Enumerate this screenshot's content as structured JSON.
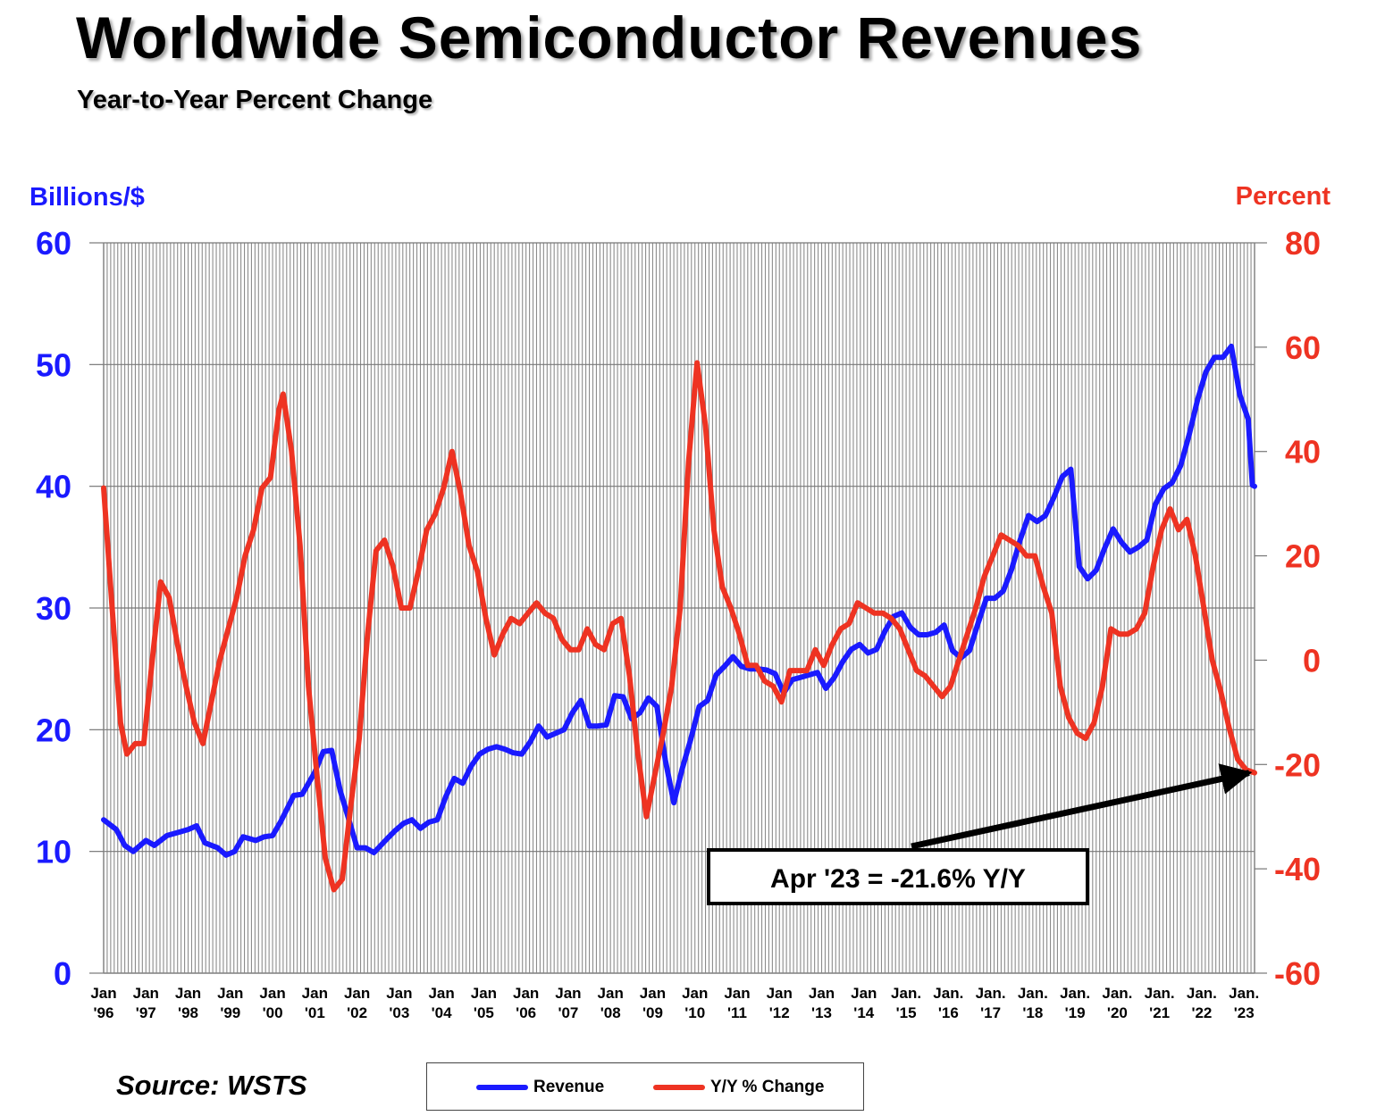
{
  "title": "Worldwide Semiconductor Revenues",
  "subtitle": "Year-to-Year Percent Change",
  "source": "Source: WSTS",
  "colors": {
    "revenue": "#1a1aff",
    "yoy": "#ee3322",
    "grid": "#8c8c8c",
    "left_axis": "#1a1aff",
    "right_axis": "#ee3322"
  },
  "chart_data": {
    "type": "line",
    "left_axis": {
      "label": "Billions/$",
      "range": [
        0,
        60
      ],
      "ticks": [
        "0",
        "10",
        "20",
        "30",
        "40",
        "50",
        "60"
      ]
    },
    "right_axis": {
      "label": "Percent",
      "range": [
        -60,
        80
      ],
      "ticks": [
        "-60",
        "-40",
        "-20",
        "0",
        "20",
        "40",
        "60",
        "80"
      ]
    },
    "x_range": [
      1996.0,
      2023.25
    ],
    "x_ticks": [
      [
        "Jan",
        "'96"
      ],
      [
        "Jan",
        "'97"
      ],
      [
        "Jan",
        "'98"
      ],
      [
        "Jan",
        "'99"
      ],
      [
        "Jan",
        "'00"
      ],
      [
        "Jan",
        "'01"
      ],
      [
        "Jan",
        "'02"
      ],
      [
        "Jan",
        "'03"
      ],
      [
        "Jan",
        "'04"
      ],
      [
        "Jan",
        "'05"
      ],
      [
        "Jan",
        "'06"
      ],
      [
        "Jan",
        "'07"
      ],
      [
        "Jan",
        "'08"
      ],
      [
        "Jan",
        "'09"
      ],
      [
        "Jan",
        "'10"
      ],
      [
        "Jan",
        "'11"
      ],
      [
        "Jan",
        "'12"
      ],
      [
        "Jan",
        "'13"
      ],
      [
        "Jan",
        "'14"
      ],
      [
        "Jan.",
        "'15"
      ],
      [
        "Jan.",
        "'16"
      ],
      [
        "Jan.",
        "'17"
      ],
      [
        "Jan.",
        "'18"
      ],
      [
        "Jan.",
        "'19"
      ],
      [
        "Jan.",
        "'20"
      ],
      [
        "Jan.",
        "'21"
      ],
      [
        "Jan.",
        "'22"
      ],
      [
        "Jan.",
        "'23"
      ]
    ],
    "grid": "vertical monthly lines, horizontal at each left-axis tick",
    "series": [
      {
        "name": "Revenue",
        "axis": "left",
        "points": [
          [
            1996.0,
            12.6
          ],
          [
            1996.3,
            11.8
          ],
          [
            1996.5,
            10.5
          ],
          [
            1996.7,
            10.0
          ],
          [
            1997.0,
            10.9
          ],
          [
            1997.2,
            10.5
          ],
          [
            1997.5,
            11.3
          ],
          [
            1997.8,
            11.6
          ],
          [
            1998.0,
            11.8
          ],
          [
            1998.2,
            12.1
          ],
          [
            1998.4,
            10.7
          ],
          [
            1998.7,
            10.3
          ],
          [
            1998.9,
            9.7
          ],
          [
            1999.1,
            10.0
          ],
          [
            1999.3,
            11.2
          ],
          [
            1999.6,
            10.9
          ],
          [
            1999.8,
            11.2
          ],
          [
            2000.0,
            11.3
          ],
          [
            2000.2,
            12.5
          ],
          [
            2000.5,
            14.6
          ],
          [
            2000.7,
            14.7
          ],
          [
            2001.0,
            16.5
          ],
          [
            2001.2,
            18.2
          ],
          [
            2001.4,
            18.3
          ],
          [
            2001.6,
            15.0
          ],
          [
            2001.8,
            12.7
          ],
          [
            2002.0,
            10.3
          ],
          [
            2002.2,
            10.3
          ],
          [
            2002.4,
            9.9
          ],
          [
            2002.7,
            11.0
          ],
          [
            2002.9,
            11.7
          ],
          [
            2003.1,
            12.3
          ],
          [
            2003.3,
            12.6
          ],
          [
            2003.5,
            11.9
          ],
          [
            2003.7,
            12.4
          ],
          [
            2003.9,
            12.6
          ],
          [
            2004.1,
            14.5
          ],
          [
            2004.3,
            16.0
          ],
          [
            2004.5,
            15.6
          ],
          [
            2004.7,
            17.0
          ],
          [
            2004.9,
            18.0
          ],
          [
            2005.1,
            18.4
          ],
          [
            2005.3,
            18.6
          ],
          [
            2005.5,
            18.4
          ],
          [
            2005.7,
            18.1
          ],
          [
            2005.9,
            18.0
          ],
          [
            2006.1,
            19.0
          ],
          [
            2006.3,
            20.3
          ],
          [
            2006.5,
            19.4
          ],
          [
            2006.7,
            19.7
          ],
          [
            2006.9,
            20.0
          ],
          [
            2007.1,
            21.4
          ],
          [
            2007.3,
            22.4
          ],
          [
            2007.5,
            20.3
          ],
          [
            2007.7,
            20.3
          ],
          [
            2007.9,
            20.4
          ],
          [
            2008.1,
            22.8
          ],
          [
            2008.3,
            22.7
          ],
          [
            2008.5,
            20.9
          ],
          [
            2008.7,
            21.4
          ],
          [
            2008.9,
            22.6
          ],
          [
            2009.1,
            21.9
          ],
          [
            2009.3,
            17.5
          ],
          [
            2009.5,
            14.0
          ],
          [
            2009.7,
            16.8
          ],
          [
            2009.9,
            19.2
          ],
          [
            2010.1,
            21.9
          ],
          [
            2010.3,
            22.4
          ],
          [
            2010.5,
            24.5
          ],
          [
            2010.7,
            25.2
          ],
          [
            2010.9,
            26.0
          ],
          [
            2011.1,
            25.2
          ],
          [
            2011.3,
            25.0
          ],
          [
            2011.5,
            25.0
          ],
          [
            2011.7,
            24.9
          ],
          [
            2011.9,
            24.6
          ],
          [
            2012.1,
            23.0
          ],
          [
            2012.3,
            24.1
          ],
          [
            2012.5,
            24.3
          ],
          [
            2012.7,
            24.5
          ],
          [
            2012.9,
            24.7
          ],
          [
            2013.1,
            23.4
          ],
          [
            2013.3,
            24.3
          ],
          [
            2013.5,
            25.6
          ],
          [
            2013.7,
            26.6
          ],
          [
            2013.9,
            27.0
          ],
          [
            2014.1,
            26.3
          ],
          [
            2014.3,
            26.6
          ],
          [
            2014.5,
            28.1
          ],
          [
            2014.7,
            29.3
          ],
          [
            2014.9,
            29.6
          ],
          [
            2015.1,
            28.4
          ],
          [
            2015.3,
            27.8
          ],
          [
            2015.5,
            27.8
          ],
          [
            2015.7,
            28.0
          ],
          [
            2015.9,
            28.6
          ],
          [
            2016.1,
            26.5
          ],
          [
            2016.3,
            25.9
          ],
          [
            2016.5,
            26.5
          ],
          [
            2016.7,
            28.7
          ],
          [
            2016.9,
            30.8
          ],
          [
            2017.1,
            30.8
          ],
          [
            2017.3,
            31.4
          ],
          [
            2017.5,
            33.2
          ],
          [
            2017.7,
            35.6
          ],
          [
            2017.9,
            37.6
          ],
          [
            2018.1,
            37.1
          ],
          [
            2018.3,
            37.6
          ],
          [
            2018.5,
            39.1
          ],
          [
            2018.7,
            40.8
          ],
          [
            2018.9,
            41.4
          ],
          [
            2019.1,
            33.4
          ],
          [
            2019.3,
            32.4
          ],
          [
            2019.5,
            33.1
          ],
          [
            2019.7,
            34.9
          ],
          [
            2019.9,
            36.5
          ],
          [
            2020.1,
            35.4
          ],
          [
            2020.3,
            34.6
          ],
          [
            2020.5,
            35.0
          ],
          [
            2020.7,
            35.6
          ],
          [
            2020.9,
            38.5
          ],
          [
            2021.1,
            39.8
          ],
          [
            2021.3,
            40.3
          ],
          [
            2021.5,
            41.7
          ],
          [
            2021.7,
            44.2
          ],
          [
            2021.9,
            47.1
          ],
          [
            2022.1,
            49.4
          ],
          [
            2022.3,
            50.6
          ],
          [
            2022.5,
            50.6
          ],
          [
            2022.7,
            51.5
          ],
          [
            2022.9,
            47.5
          ],
          [
            2023.1,
            45.5
          ],
          [
            2023.2,
            40.1
          ],
          [
            2023.25,
            40.0
          ]
        ]
      },
      {
        "name": "Y/Y % Change",
        "axis": "right",
        "points": [
          [
            1996.0,
            33
          ],
          [
            1996.2,
            10
          ],
          [
            1996.4,
            -12
          ],
          [
            1996.55,
            -18
          ],
          [
            1996.75,
            -16
          ],
          [
            1996.95,
            -16
          ],
          [
            1997.15,
            0
          ],
          [
            1997.35,
            15
          ],
          [
            1997.55,
            12
          ],
          [
            1997.75,
            3
          ],
          [
            1997.95,
            -5
          ],
          [
            1998.15,
            -12
          ],
          [
            1998.35,
            -16
          ],
          [
            1998.55,
            -8
          ],
          [
            1998.75,
            0
          ],
          [
            1998.95,
            6
          ],
          [
            1999.15,
            12
          ],
          [
            1999.35,
            20
          ],
          [
            1999.55,
            25
          ],
          [
            1999.75,
            33
          ],
          [
            1999.95,
            35
          ],
          [
            2000.15,
            48
          ],
          [
            2000.25,
            51
          ],
          [
            2000.45,
            40
          ],
          [
            2000.65,
            22
          ],
          [
            2000.85,
            -5
          ],
          [
            2001.05,
            -22
          ],
          [
            2001.25,
            -38
          ],
          [
            2001.45,
            -44
          ],
          [
            2001.65,
            -42
          ],
          [
            2001.85,
            -28
          ],
          [
            2002.05,
            -15
          ],
          [
            2002.25,
            5
          ],
          [
            2002.45,
            21
          ],
          [
            2002.65,
            23
          ],
          [
            2002.85,
            18
          ],
          [
            2003.05,
            10
          ],
          [
            2003.25,
            10
          ],
          [
            2003.45,
            17
          ],
          [
            2003.65,
            25
          ],
          [
            2003.85,
            28
          ],
          [
            2004.05,
            33
          ],
          [
            2004.25,
            40
          ],
          [
            2004.45,
            32
          ],
          [
            2004.65,
            22
          ],
          [
            2004.85,
            17
          ],
          [
            2005.05,
            8
          ],
          [
            2005.25,
            1
          ],
          [
            2005.45,
            5
          ],
          [
            2005.65,
            8
          ],
          [
            2005.85,
            7
          ],
          [
            2006.05,
            9
          ],
          [
            2006.25,
            11
          ],
          [
            2006.45,
            9
          ],
          [
            2006.65,
            8
          ],
          [
            2006.85,
            4
          ],
          [
            2007.05,
            2
          ],
          [
            2007.25,
            2
          ],
          [
            2007.45,
            6
          ],
          [
            2007.65,
            3
          ],
          [
            2007.85,
            2
          ],
          [
            2008.05,
            7
          ],
          [
            2008.25,
            8
          ],
          [
            2008.45,
            -3
          ],
          [
            2008.65,
            -18
          ],
          [
            2008.85,
            -30
          ],
          [
            2009.05,
            -22
          ],
          [
            2009.25,
            -14
          ],
          [
            2009.45,
            -5
          ],
          [
            2009.65,
            10
          ],
          [
            2009.85,
            38
          ],
          [
            2010.05,
            57
          ],
          [
            2010.25,
            45
          ],
          [
            2010.45,
            25
          ],
          [
            2010.65,
            14
          ],
          [
            2010.85,
            10
          ],
          [
            2011.05,
            5
          ],
          [
            2011.25,
            -1
          ],
          [
            2011.45,
            -1
          ],
          [
            2011.65,
            -4
          ],
          [
            2011.85,
            -5
          ],
          [
            2012.05,
            -8
          ],
          [
            2012.25,
            -2
          ],
          [
            2012.45,
            -2
          ],
          [
            2012.65,
            -2
          ],
          [
            2012.85,
            2
          ],
          [
            2013.05,
            -1
          ],
          [
            2013.25,
            3
          ],
          [
            2013.45,
            6
          ],
          [
            2013.65,
            7
          ],
          [
            2013.85,
            11
          ],
          [
            2014.05,
            10
          ],
          [
            2014.25,
            9
          ],
          [
            2014.45,
            9
          ],
          [
            2014.65,
            8
          ],
          [
            2014.85,
            6
          ],
          [
            2015.05,
            2
          ],
          [
            2015.25,
            -2
          ],
          [
            2015.45,
            -3
          ],
          [
            2015.65,
            -5
          ],
          [
            2015.85,
            -7
          ],
          [
            2016.05,
            -5
          ],
          [
            2016.25,
            0
          ],
          [
            2016.45,
            5
          ],
          [
            2016.65,
            10
          ],
          [
            2016.85,
            16
          ],
          [
            2017.05,
            20
          ],
          [
            2017.25,
            24
          ],
          [
            2017.45,
            23
          ],
          [
            2017.65,
            22
          ],
          [
            2017.85,
            20
          ],
          [
            2018.05,
            20
          ],
          [
            2018.25,
            14
          ],
          [
            2018.45,
            9
          ],
          [
            2018.65,
            -5
          ],
          [
            2018.85,
            -11
          ],
          [
            2019.05,
            -14
          ],
          [
            2019.25,
            -15
          ],
          [
            2019.45,
            -12
          ],
          [
            2019.65,
            -5
          ],
          [
            2019.85,
            6
          ],
          [
            2020.05,
            5
          ],
          [
            2020.25,
            5
          ],
          [
            2020.45,
            6
          ],
          [
            2020.65,
            9
          ],
          [
            2020.85,
            18
          ],
          [
            2021.05,
            25
          ],
          [
            2021.25,
            29
          ],
          [
            2021.45,
            25
          ],
          [
            2021.65,
            27
          ],
          [
            2021.85,
            20
          ],
          [
            2022.05,
            10
          ],
          [
            2022.25,
            0
          ],
          [
            2022.45,
            -6
          ],
          [
            2022.65,
            -13
          ],
          [
            2022.85,
            -19
          ],
          [
            2023.05,
            -21
          ],
          [
            2023.25,
            -21.6
          ]
        ]
      }
    ],
    "annotation": {
      "text": "Apr '23 = -21.6% Y/Y",
      "x": 2023.25,
      "y": -21.6,
      "axis": "right"
    }
  },
  "legend": [
    {
      "label": "Revenue",
      "color": "#1a1aff"
    },
    {
      "label": "Y/Y % Change",
      "color": "#ee3322"
    }
  ]
}
